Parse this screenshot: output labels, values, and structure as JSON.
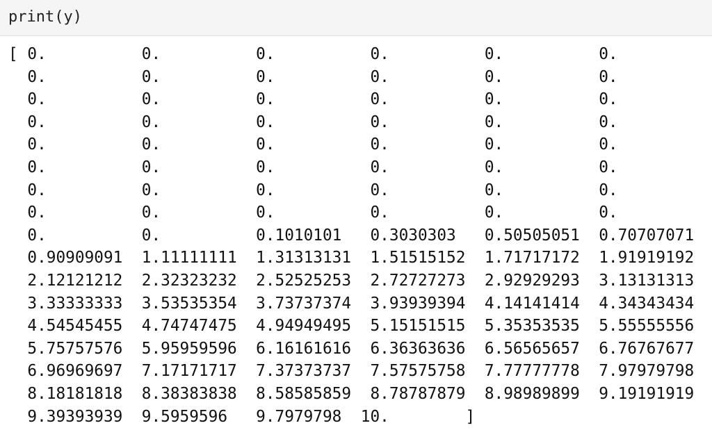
{
  "input": {
    "code": "print(y)"
  },
  "output": {
    "lines": [
      "[ 0.          0.          0.          0.          0.          0.",
      "  0.          0.          0.          0.          0.          0.",
      "  0.          0.          0.          0.          0.          0.",
      "  0.          0.          0.          0.          0.          0.",
      "  0.          0.          0.          0.          0.          0.",
      "  0.          0.          0.          0.          0.          0.",
      "  0.          0.          0.          0.          0.          0.",
      "  0.          0.          0.          0.          0.          0.",
      "  0.          0.          0.1010101   0.3030303   0.50505051  0.70707071",
      "  0.90909091  1.11111111  1.31313131  1.51515152  1.71717172  1.91919192",
      "  2.12121212  2.32323232  2.52525253  2.72727273  2.92929293  3.13131313",
      "  3.33333333  3.53535354  3.73737374  3.93939394  4.14141414  4.34343434",
      "  4.54545455  4.74747475  4.94949495  5.15151515  5.35353535  5.55555556",
      "  5.75757576  5.95959596  6.16161616  6.36363636  6.56565657  6.76767677",
      "  6.96969697  7.17171717  7.37373737  7.57575758  7.77777778  7.97979798",
      "  8.18181818  8.38383838  8.58585859  8.78787879  8.98989899  9.19191919",
      "  9.39393939  9.5959596   9.7979798  10.        ]"
    ]
  }
}
